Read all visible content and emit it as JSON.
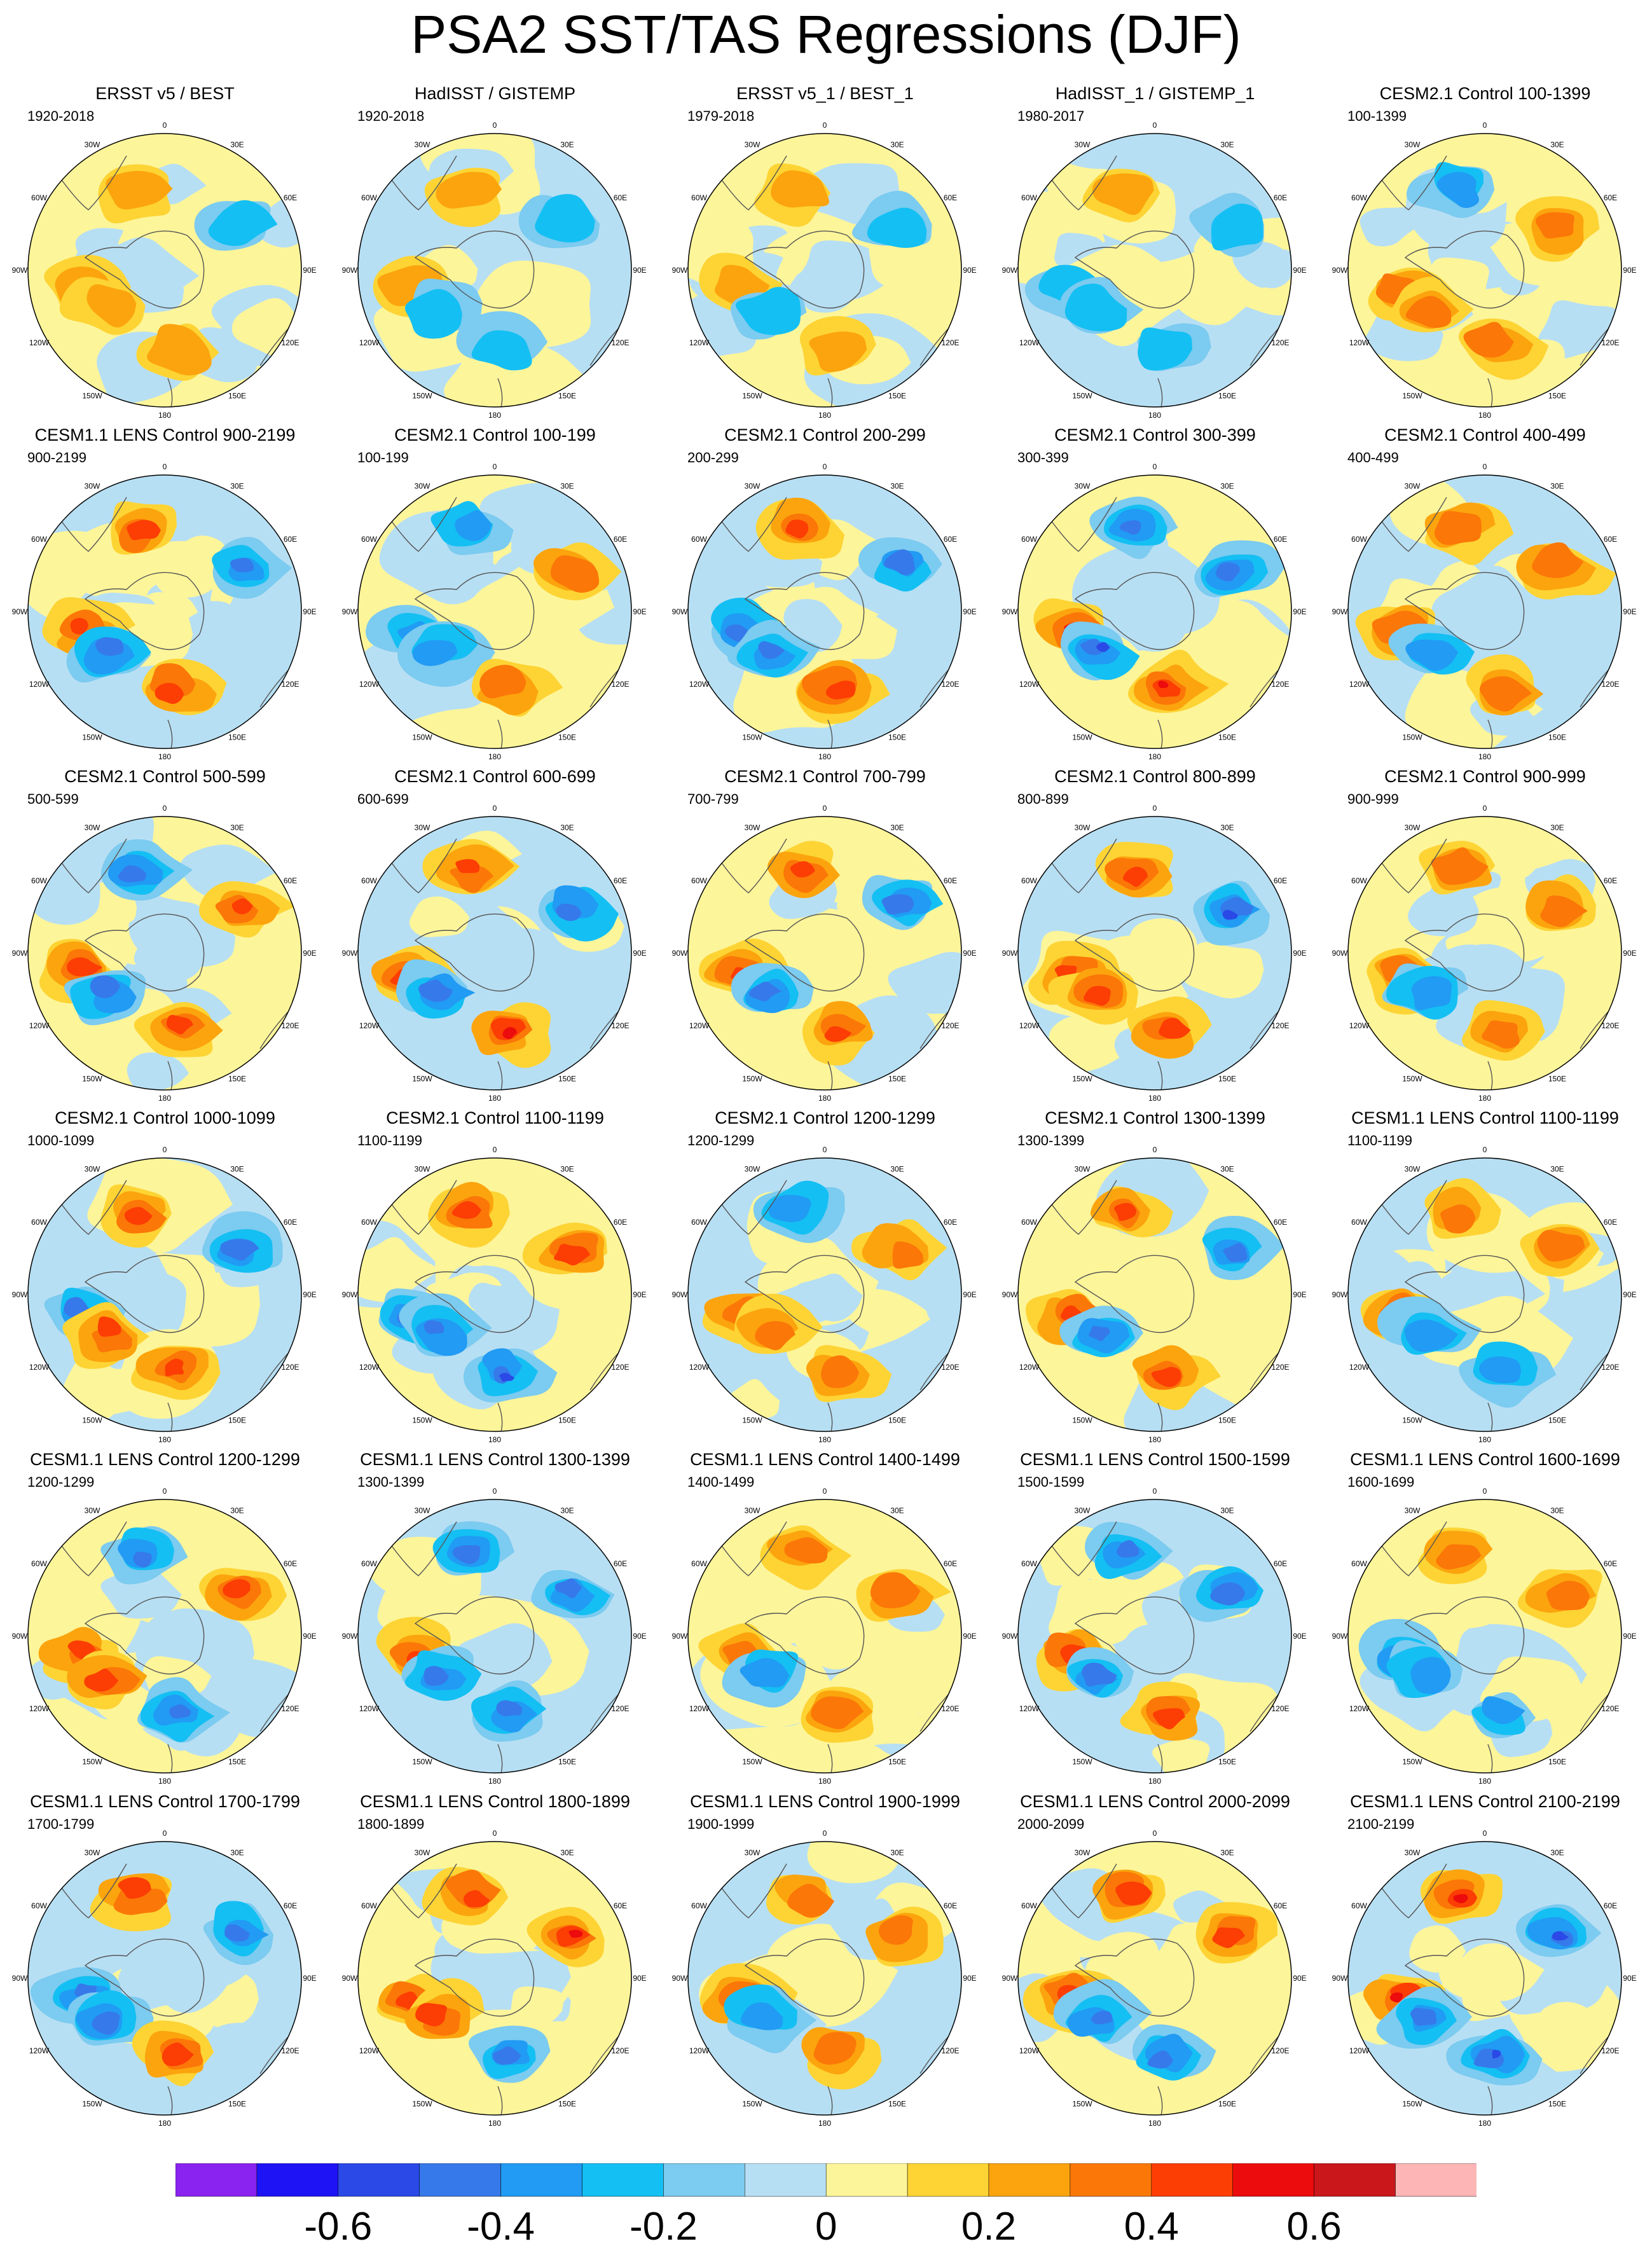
{
  "title": "PSA2 SST/TAS Regressions (DJF)",
  "longitude_labels": [
    "0",
    "30E",
    "60E",
    "90E",
    "120E",
    "150E",
    "180",
    "150W",
    "120W",
    "90W",
    "60W",
    "30W"
  ],
  "panels": [
    {
      "title": "ERSST v5 / BEST",
      "period": "1920-2018"
    },
    {
      "title": "HadISST / GISTEMP",
      "period": "1920-2018"
    },
    {
      "title": "ERSST v5_1 / BEST_1",
      "period": "1979-2018"
    },
    {
      "title": "HadISST_1 / GISTEMP_1",
      "period": "1980-2017"
    },
    {
      "title": "CESM2.1 Control 100-1399",
      "period": "100-1399"
    },
    {
      "title": "CESM1.1 LENS Control 900-2199",
      "period": "900-2199"
    },
    {
      "title": "CESM2.1 Control 100-199",
      "period": "100-199"
    },
    {
      "title": "CESM2.1 Control 200-299",
      "period": "200-299"
    },
    {
      "title": "CESM2.1 Control 300-399",
      "period": "300-399"
    },
    {
      "title": "CESM2.1 Control 400-499",
      "period": "400-499"
    },
    {
      "title": "CESM2.1 Control 500-599",
      "period": "500-599"
    },
    {
      "title": "CESM2.1 Control 600-699",
      "period": "600-699"
    },
    {
      "title": "CESM2.1 Control 700-799",
      "period": "700-799"
    },
    {
      "title": "CESM2.1 Control 800-899",
      "period": "800-899"
    },
    {
      "title": "CESM2.1 Control 900-999",
      "period": "900-999"
    },
    {
      "title": "CESM2.1 Control 1000-1099",
      "period": "1000-1099"
    },
    {
      "title": "CESM2.1 Control 1100-1199",
      "period": "1100-1199"
    },
    {
      "title": "CESM2.1 Control 1200-1299",
      "period": "1200-1299"
    },
    {
      "title": "CESM2.1 Control 1300-1399",
      "period": "1300-1399"
    },
    {
      "title": "CESM1.1 LENS Control 1100-1199",
      "period": "1100-1199"
    },
    {
      "title": "CESM1.1 LENS Control 1200-1299",
      "period": "1200-1299"
    },
    {
      "title": "CESM1.1 LENS Control 1300-1399",
      "period": "1300-1399"
    },
    {
      "title": "CESM1.1 LENS Control 1400-1499",
      "period": "1400-1499"
    },
    {
      "title": "CESM1.1 LENS Control 1500-1599",
      "period": "1500-1599"
    },
    {
      "title": "CESM1.1 LENS Control 1600-1699",
      "period": "1600-1699"
    },
    {
      "title": "CESM1.1 LENS Control 1700-1799",
      "period": "1700-1799"
    },
    {
      "title": "CESM1.1 LENS Control 1800-1899",
      "period": "1800-1899"
    },
    {
      "title": "CESM1.1 LENS Control 1900-1999",
      "period": "1900-1999"
    },
    {
      "title": "CESM1.1 LENS Control 2000-2099",
      "period": "2000-2099"
    },
    {
      "title": "CESM1.1 LENS Control 2100-2199",
      "period": "2100-2199"
    }
  ],
  "colorbar": {
    "colors": [
      "#8a22f0",
      "#1e13f5",
      "#2a49e6",
      "#3679ea",
      "#219bf4",
      "#14bff3",
      "#7ccbf0",
      "#b7dff3",
      "#fdf59a",
      "#fdd434",
      "#fca40d",
      "#fb7708",
      "#fc3d04",
      "#ec0b0d",
      "#c9171c",
      "#fdb5b6"
    ],
    "tick_labels": [
      "-0.6",
      "-0.4",
      "-0.2",
      "0",
      "0.2",
      "0.4",
      "0.6"
    ],
    "tick_values": [
      -0.6,
      -0.4,
      -0.2,
      0,
      0.2,
      0.4,
      0.6
    ],
    "levels": [
      -0.7,
      -0.6,
      -0.5,
      -0.4,
      -0.3,
      -0.2,
      -0.1,
      0,
      0.1,
      0.2,
      0.3,
      0.4,
      0.5,
      0.6,
      0.7
    ]
  }
}
